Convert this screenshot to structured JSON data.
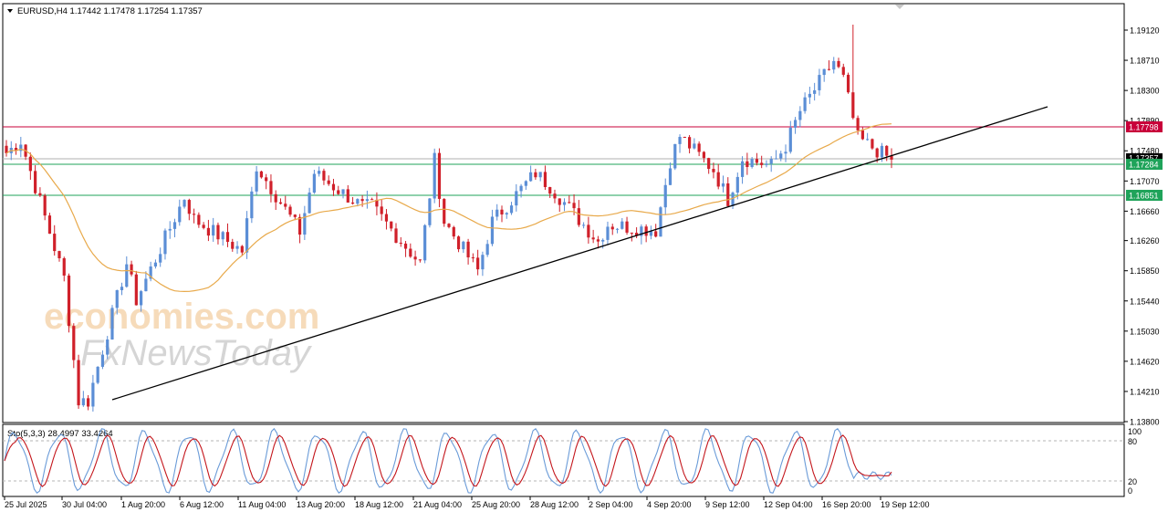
{
  "header": {
    "symbol_line": "EURUSD,H4  1.17442 1.17478 1.17254 1.17357"
  },
  "stochastic": {
    "label": "Sto(5,3,3) 28.4997 33.4264",
    "levels": [
      "100",
      "80",
      "20",
      "0"
    ]
  },
  "watermark": {
    "line1": "economies.com",
    "line2": "FxNewsToday"
  },
  "price_labels": {
    "resistance": "1.17798",
    "current": "1.17357",
    "support1": "1.17284",
    "support2": "1.16851"
  },
  "colors": {
    "bull": "#5B8ED6",
    "bear": "#D0202A",
    "ma": "#E8A94A",
    "resistance_line": "#C8003A",
    "support_line": "#1FA35A",
    "trendline": "#000000",
    "stoch_main": "#6A9BD8",
    "stoch_signal": "#C4161C"
  },
  "chart_data": {
    "type": "candlestick",
    "title": "EURUSD,H4",
    "ohlc_last": {
      "open": 1.17442,
      "high": 1.17478,
      "low": 1.17254,
      "close": 1.17357
    },
    "y_axis_ticks": [
      "1.19120",
      "1.18710",
      "1.18300",
      "1.17890",
      "1.17480",
      "1.17070",
      "1.16660",
      "1.16260",
      "1.15850",
      "1.15440",
      "1.15030",
      "1.14620",
      "1.14210",
      "1.13800"
    ],
    "ylim": [
      1.138,
      1.1952
    ],
    "x_axis_ticks": [
      "25 Jul 2025",
      "30 Jul 04:00",
      "1 Aug 20:00",
      "6 Aug 12:00",
      "11 Aug 04:00",
      "13 Aug 20:00",
      "18 Aug 12:00",
      "21 Aug 04:00",
      "25 Aug 20:00",
      "28 Aug 12:00",
      "2 Sep 04:00",
      "4 Sep 20:00",
      "9 Sep 12:00",
      "12 Sep 04:00",
      "16 Sep 20:00",
      "19 Sep 12:00"
    ],
    "horizontal_levels": [
      1.17798,
      1.17357,
      1.17284,
      1.16851
    ],
    "trendline": {
      "from": {
        "x": "30 Jul 04:00",
        "y": 1.1395
      },
      "to": {
        "x": "19 Sep 12:00",
        "y": 1.1737
      }
    },
    "close_path_knots": [
      {
        "x": "25 Jul 2025",
        "close": 1.1745
      },
      {
        "x": "25 Jul 2025",
        "close": 1.1762
      },
      {
        "x": "30 Jul 04:00",
        "close": 1.1575
      },
      {
        "x": "30 Jul 04:00",
        "close": 1.1408
      },
      {
        "x": "30 Jul 04:00",
        "close": 1.1408
      },
      {
        "x": "1 Aug 20:00",
        "close": 1.1595
      },
      {
        "x": "1 Aug 20:00",
        "close": 1.1545
      },
      {
        "x": "6 Aug 12:00",
        "close": 1.1685
      },
      {
        "x": "6 Aug 12:00",
        "close": 1.1655
      },
      {
        "x": "11 Aug 04:00",
        "close": 1.1612
      },
      {
        "x": "11 Aug 04:00",
        "close": 1.1728
      },
      {
        "x": "13 Aug 20:00",
        "close": 1.1638
      },
      {
        "x": "13 Aug 20:00",
        "close": 1.1718
      },
      {
        "x": "18 Aug 12:00",
        "close": 1.1672
      },
      {
        "x": "18 Aug 12:00",
        "close": 1.1672
      },
      {
        "x": "21 Aug 04:00",
        "close": 1.1595
      },
      {
        "x": "21 Aug 04:00",
        "close": 1.1735
      },
      {
        "x": "21 Aug 04:00",
        "close": 1.1652
      },
      {
        "x": "25 Aug 20:00",
        "close": 1.1585
      },
      {
        "x": "25 Aug 20:00",
        "close": 1.1652
      },
      {
        "x": "28 Aug 12:00",
        "close": 1.1718
      },
      {
        "x": "28 Aug 12:00",
        "close": 1.17
      },
      {
        "x": "2 Sep 04:00",
        "close": 1.1625
      },
      {
        "x": "2 Sep 04:00",
        "close": 1.1648
      },
      {
        "x": "4 Sep 20:00",
        "close": 1.164
      },
      {
        "x": "4 Sep 20:00",
        "close": 1.1735
      },
      {
        "x": "4 Sep 20:00",
        "close": 1.1768
      },
      {
        "x": "9 Sep 12:00",
        "close": 1.1722
      },
      {
        "x": "9 Sep 12:00",
        "close": 1.1682
      },
      {
        "x": "9 Sep 12:00",
        "close": 1.1738
      },
      {
        "x": "12 Sep 04:00",
        "close": 1.1728
      },
      {
        "x": "12 Sep 04:00",
        "close": 1.1755
      },
      {
        "x": "12 Sep 04:00",
        "close": 1.1802
      },
      {
        "x": "16 Sep 20:00",
        "close": 1.187
      },
      {
        "x": "16 Sep 20:00",
        "close": 1.1845
      },
      {
        "x": "16 Sep 20:00",
        "close": 1.1765
      },
      {
        "x": "19 Sep 12:00",
        "close": 1.1736
      }
    ],
    "candles_shown": 185,
    "series": [
      {
        "kind": "candles"
      },
      {
        "kind": "moving_average",
        "color": "#E8A94A"
      },
      {
        "name": "Sto(5,3,3)",
        "main": 28.4997,
        "signal": 33.4264,
        "levels": [
          80,
          20
        ],
        "range": [
          0,
          100
        ]
      }
    ],
    "grid": false
  }
}
